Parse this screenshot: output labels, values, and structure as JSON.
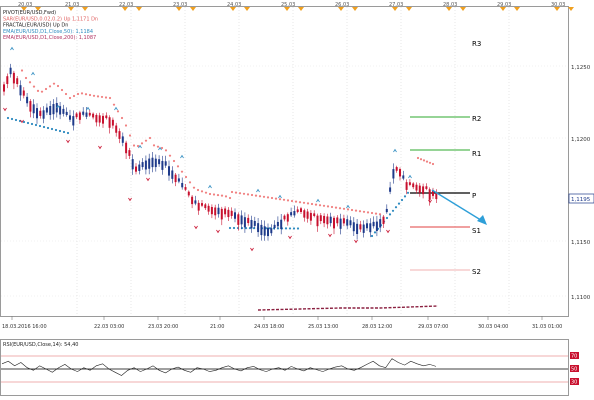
{
  "top_dates": [
    "20.03",
    "21.03",
    "22.03",
    "23.03",
    "24.03",
    "25.03",
    "26.03",
    "27.03",
    "28.03",
    "29.03",
    "30.03"
  ],
  "legend": [
    {
      "text": "PIVOT(EUR/USD,Fwd)",
      "color": "#222222"
    },
    {
      "text": "SAR(EUR/USD,0.02,0.2)  Up   1,1171   Dn",
      "color": "#e06060"
    },
    {
      "text": "FRACTAL(EUR/USD)    Up  Dn",
      "color": "#222222"
    },
    {
      "text": "EMA(EUR/USD,D1,Close,50): 1,1184",
      "color": "#2e8bc0"
    },
    {
      "text": "EMA(EUR/USD,D1,Close,200): 1,1087",
      "color": "#b03060"
    }
  ],
  "pivot_labels": {
    "r3": "R3",
    "r2": "R2",
    "r1": "R1",
    "p": "P",
    "s1": "S1",
    "s2": "S2"
  },
  "price_axis": [
    "1,1250",
    "1,1200",
    "1,1150",
    "1,1100"
  ],
  "price_tag": "1,1195",
  "time_axis": [
    "18.03.2016 16:00",
    "22.03 03:00",
    "23.03 20:00",
    "21:00",
    "24.03 18:00",
    "25.03 13:00",
    "28.03 12:00",
    "29.03 07:00",
    "30.03 04:00",
    "31.03 01:00"
  ],
  "rsi": {
    "label": "RSI(EUR/USD,Close,14): 54,40",
    "levels": [
      "70",
      "50",
      "30"
    ],
    "values": [
      58,
      62,
      55,
      60,
      52,
      48,
      55,
      50,
      45,
      52,
      57,
      50,
      46,
      52,
      48,
      55,
      58,
      50,
      45,
      40,
      48,
      52,
      46,
      50,
      55,
      48,
      44,
      50,
      53,
      48,
      45,
      52,
      50,
      46,
      48,
      52,
      55,
      50,
      47,
      52,
      54,
      49,
      46,
      50,
      52,
      48,
      54,
      50,
      47,
      52,
      49,
      46,
      50,
      53,
      55,
      50,
      48,
      52,
      57,
      62,
      55,
      52,
      66,
      60,
      56,
      62,
      58,
      55,
      57,
      54
    ]
  },
  "colors": {
    "candle_up": "#1e3a8a",
    "candle_down": "#c8102e",
    "sar": "#f08080",
    "ema50": "#2e8bc0",
    "r_line": "#2ea82e",
    "s_line": "#e04040",
    "pivot_line": "#000000",
    "forecast_arrow": "#2e9fd8",
    "fractal": "#2e8bc0"
  },
  "chart_data": {
    "type": "candlestick",
    "series": [
      {
        "name": "EUR/USD",
        "values": [
          1.1262,
          1.1255,
          1.124,
          1.1225,
          1.1232,
          1.1228,
          1.1218,
          1.1222,
          1.123,
          1.1215,
          1.1205,
          1.1212,
          1.122,
          1.1208,
          1.1198,
          1.121,
          1.1215,
          1.1195,
          1.119,
          1.1182,
          1.1176,
          1.117,
          1.1174,
          1.1168,
          1.1162,
          1.1158,
          1.1164,
          1.116,
          1.1166,
          1.117,
          1.1165,
          1.116,
          1.1166,
          1.1168,
          1.1172,
          1.1168,
          1.1166,
          1.1164,
          1.1169,
          1.1172,
          1.1168,
          1.1163,
          1.1166,
          1.1206,
          1.1212,
          1.12,
          1.1196,
          1.1198,
          1.1192,
          1.1195
        ]
      },
      {
        "name": "EMA 50",
        "values": [
          1.1184
        ]
      },
      {
        "name": "EMA 200",
        "values": [
          1.1087
        ]
      }
    ],
    "ylim": [
      1.1085,
      1.129
    ]
  }
}
